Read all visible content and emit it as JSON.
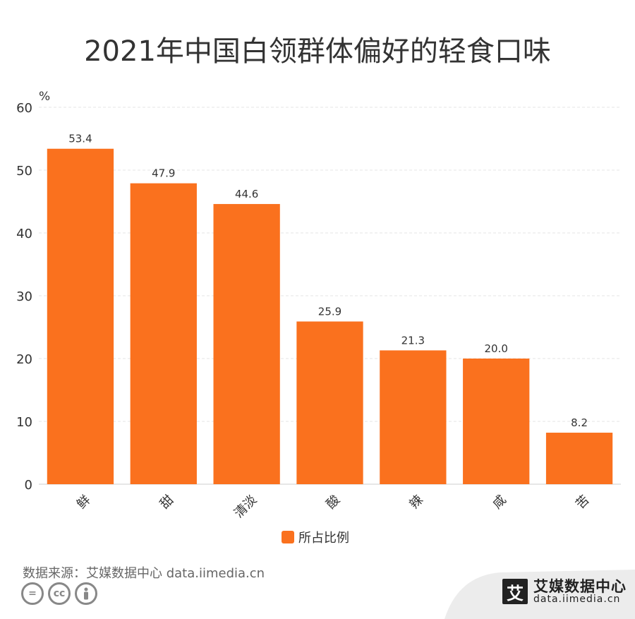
{
  "title": "2021年中国白领群体偏好的轻食口味",
  "unit": "%",
  "legend_label": "所占比例",
  "source": "数据来源：艾媒数据中心 data.iimedia.cn",
  "brand": {
    "name": "艾媒数据中心",
    "url": "data.iimedia.cn",
    "logo_char": "艾"
  },
  "colors": {
    "bar": "#fa711e",
    "grid": "#e6e6e6",
    "axis": "#cccccc",
    "text": "#333333"
  },
  "chart_data": {
    "type": "bar",
    "categories": [
      "鲜",
      "甜",
      "清淡",
      "酸",
      "辣",
      "咸",
      "苦"
    ],
    "series": [
      {
        "name": "所占比例",
        "values": [
          53.4,
          47.9,
          44.6,
          25.9,
          21.3,
          20.0,
          8.2
        ]
      }
    ],
    "value_labels": [
      "53.4",
      "47.9",
      "44.6",
      "25.9",
      "21.3",
      "20.0",
      "8.2"
    ],
    "ylabel": "%",
    "ylim": [
      0,
      60
    ],
    "yticks": [
      0,
      10,
      20,
      30,
      40,
      50,
      60
    ],
    "grid": true,
    "legend_position": "bottom"
  }
}
